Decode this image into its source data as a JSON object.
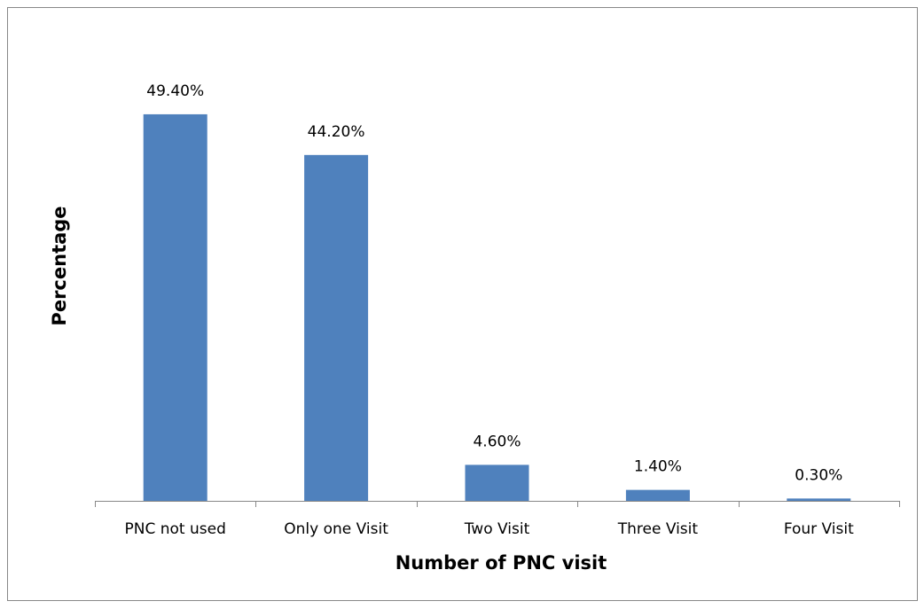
{
  "chart_data": {
    "type": "bar",
    "x_label": "Number of PNC visit",
    "y_label": "Percentage",
    "categories": [
      "PNC not used",
      "Only one Visit",
      "Two Visit",
      "Three Visit",
      "Four Visit"
    ],
    "values": [
      49.4,
      44.2,
      4.6,
      1.4,
      0.3
    ],
    "value_labels": [
      "49.40%",
      "44.20%",
      "4.60%",
      "1.40%",
      "0.30%"
    ],
    "color": "#4f81bd",
    "ylim": [
      0,
      55
    ]
  }
}
